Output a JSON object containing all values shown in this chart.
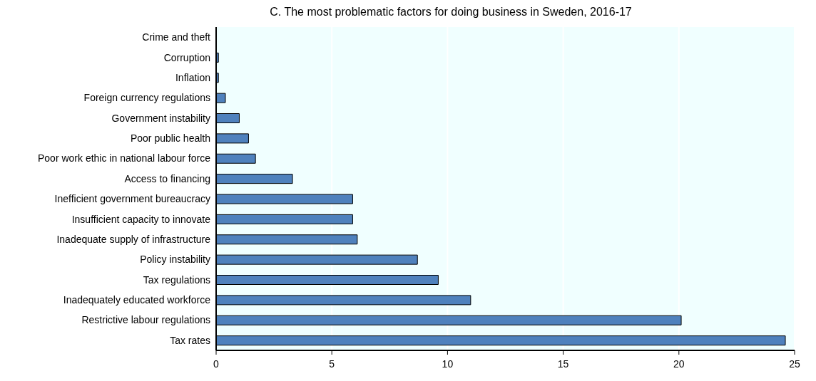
{
  "chart_data": {
    "type": "bar",
    "orientation": "horizontal",
    "title": "C. The most problematic factors for doing business in Sweden, 2016-17",
    "categories": [
      "Crime and theft",
      "Corruption",
      "Inflation",
      "Foreign currency regulations",
      "Government instability",
      "Poor public health",
      "Poor work ethic in national labour force",
      "Access to financing",
      "Inefficient government bureaucracy",
      "Insufficient capacity to innovate",
      "Inadequate supply of infrastructure",
      "Policy instability",
      "Tax regulations",
      "Inadequately educated workforce",
      "Restrictive labour regulations",
      "Tax rates"
    ],
    "values": [
      0,
      0.1,
      0.1,
      0.4,
      1.0,
      1.4,
      1.7,
      3.3,
      5.9,
      5.9,
      6.1,
      8.7,
      9.6,
      11.0,
      20.1,
      24.6
    ],
    "color": "#4f81bd",
    "xlim": [
      0,
      25
    ],
    "xticks": [
      0,
      5,
      10,
      15,
      20,
      25
    ],
    "grid": "x"
  }
}
